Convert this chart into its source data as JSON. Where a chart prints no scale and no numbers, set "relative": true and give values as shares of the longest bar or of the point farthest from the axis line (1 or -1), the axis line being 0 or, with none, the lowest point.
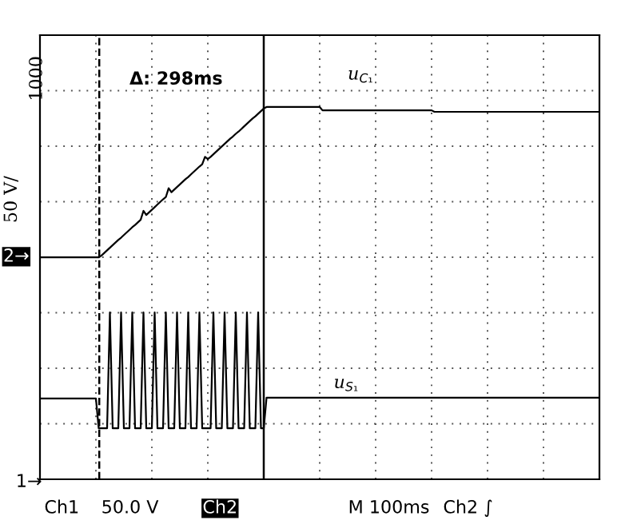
{
  "chart_data": {
    "type": "line",
    "relative": true,
    "ylabel": "50 V/",
    "categories": [
      null,
      null,
      null,
      null,
      null,
      null,
      null,
      null,
      null,
      null,
      null,
      null,
      null,
      null,
      null,
      null,
      null,
      null,
      null,
      null,
      null,
      null,
      null,
      null,
      null,
      null,
      null,
      null,
      null,
      null,
      null,
      null,
      null,
      null,
      null,
      null,
      null,
      null,
      null,
      null,
      null,
      null,
      null,
      null,
      null,
      null,
      null,
      null,
      null,
      null,
      null,
      null,
      null,
      null,
      null,
      null,
      null,
      null,
      null,
      null,
      null,
      null,
      null,
      null,
      null,
      null,
      null,
      null,
      null,
      null,
      null,
      null,
      null,
      null,
      null,
      null,
      null,
      null,
      null,
      null,
      null,
      null,
      null,
      null,
      null,
      null,
      null,
      null,
      null,
      null,
      null,
      null,
      null,
      null,
      null,
      null,
      null,
      null,
      null,
      null,
      null,
      null,
      null,
      null,
      null,
      null,
      null,
      null,
      null,
      null,
      null,
      null,
      null,
      null,
      null,
      null,
      null,
      null,
      null,
      null,
      null,
      null,
      null,
      null,
      null,
      null,
      null,
      null,
      null,
      null,
      null,
      null,
      null,
      null,
      null,
      null,
      null,
      null,
      null,
      null,
      null,
      null,
      null,
      null,
      null,
      null,
      null,
      null,
      null,
      null,
      null,
      null,
      null,
      null,
      null,
      null,
      null,
      null,
      null,
      null,
      null,
      null,
      null,
      null,
      null,
      null,
      null,
      null,
      null,
      null,
      null,
      null,
      null,
      null,
      null,
      null,
      null,
      null,
      null,
      null,
      null,
      null,
      null,
      null,
      null,
      null,
      null,
      null,
      null,
      null,
      null,
      null,
      null,
      null,
      null,
      null,
      null,
      null,
      null,
      null,
      null
    ],
    "grid": true,
    "legend": false,
    "marker": "none",
    "line_style": "solid",
    "annotations": [
      "Δ: 298ms",
      "1000",
      "Ch1",
      "50.0 V",
      "Ch2",
      "M 100ms",
      "Ch2 ∫",
      "2→",
      "1→"
    ],
    "series": [
      {
        "name": "u$_{C₁}$",
        "color": "#000000",
        "values": [
          0.596,
          0.596,
          0.596,
          0.596,
          0.596,
          0.596,
          0.596,
          0.596,
          0.596,
          0.596,
          0.596,
          0.596,
          0.596,
          0.596,
          0.596,
          0.596,
          0.596,
          0.596,
          0.596,
          0.596,
          0.596,
          0.596,
          0.601,
          0.608,
          0.615,
          0.622,
          0.629,
          0.636,
          0.643,
          0.649,
          0.656,
          0.663,
          0.67,
          0.677,
          0.683,
          0.69,
          0.697,
          0.721,
          0.71,
          0.717,
          0.724,
          0.731,
          0.738,
          0.745,
          0.752,
          0.758,
          0.782,
          0.771,
          0.778,
          0.785,
          0.792,
          0.799,
          0.806,
          0.812,
          0.819,
          0.826,
          0.833,
          0.84,
          0.846,
          0.866,
          0.86,
          0.866,
          0.873,
          0.88,
          0.887,
          0.894,
          0.901,
          0.908,
          0.915,
          0.921,
          0.928,
          0.934,
          0.941,
          0.948,
          0.955,
          0.962,
          0.969,
          0.975,
          0.982,
          0.989,
          0.996,
          1.0,
          1.0,
          1.0,
          1.0,
          1.0,
          1.0,
          1.0,
          1.0,
          1.0,
          1.0,
          1.0,
          1.0,
          1.0,
          1.0,
          1.0,
          1.0,
          1.0,
          1.0,
          1.0,
          1.0,
          0.991,
          0.991,
          0.991,
          0.991,
          0.991,
          0.991,
          0.991,
          0.991,
          0.991,
          0.991,
          0.991,
          0.991,
          0.991,
          0.991,
          0.991,
          0.991,
          0.991,
          0.991,
          0.991,
          0.991,
          0.991,
          0.991,
          0.991,
          0.991,
          0.991,
          0.991,
          0.991,
          0.991,
          0.991,
          0.991,
          0.991,
          0.991,
          0.991,
          0.991,
          0.991,
          0.991,
          0.991,
          0.991,
          0.991,
          0.991,
          0.987,
          0.987,
          0.987,
          0.987,
          0.987,
          0.987,
          0.987,
          0.987,
          0.987,
          0.987,
          0.987,
          0.987,
          0.987,
          0.987,
          0.987,
          0.987,
          0.987,
          0.987,
          0.987,
          0.987,
          0.987,
          0.987,
          0.987,
          0.987,
          0.987,
          0.987,
          0.987,
          0.987,
          0.987,
          0.987,
          0.987,
          0.987,
          0.987,
          0.987,
          0.987,
          0.987,
          0.987,
          0.987,
          0.987,
          0.987,
          0.987,
          0.987,
          0.987,
          0.987,
          0.987,
          0.987,
          0.987,
          0.987,
          0.987,
          0.987,
          0.987,
          0.987,
          0.987,
          0.987,
          0.987,
          0.987,
          0.987,
          0.987,
          0.987,
          0.987
        ]
      },
      {
        "name": "u$_{S₁}$",
        "color": "#000000",
        "values": [
          0.217,
          0.217,
          0.217,
          0.217,
          0.217,
          0.217,
          0.217,
          0.217,
          0.217,
          0.217,
          0.217,
          0.217,
          0.217,
          0.217,
          0.217,
          0.217,
          0.217,
          0.217,
          0.217,
          0.217,
          0.217,
          0.137,
          0.137,
          0.137,
          0.137,
          0.448,
          0.137,
          0.137,
          0.137,
          0.448,
          0.137,
          0.137,
          0.137,
          0.448,
          0.137,
          0.137,
          0.137,
          0.448,
          0.137,
          0.137,
          0.137,
          0.448,
          0.137,
          0.137,
          0.137,
          0.448,
          0.137,
          0.137,
          0.137,
          0.448,
          0.137,
          0.137,
          0.137,
          0.448,
          0.137,
          0.137,
          0.137,
          0.448,
          0.137,
          0.137,
          0.137,
          0.137,
          0.448,
          0.137,
          0.137,
          0.137,
          0.448,
          0.137,
          0.137,
          0.137,
          0.448,
          0.137,
          0.137,
          0.137,
          0.448,
          0.137,
          0.137,
          0.137,
          0.448,
          0.137,
          0.137,
          0.219,
          0.219,
          0.219,
          0.219,
          0.219,
          0.219,
          0.219,
          0.219,
          0.219,
          0.219,
          0.219,
          0.219,
          0.219,
          0.219,
          0.219,
          0.219,
          0.219,
          0.219,
          0.219,
          0.219,
          0.219,
          0.219,
          0.219,
          0.219,
          0.219,
          0.219,
          0.219,
          0.219,
          0.219,
          0.219,
          0.219,
          0.219,
          0.219,
          0.219,
          0.219,
          0.219,
          0.219,
          0.219,
          0.219,
          0.219,
          0.219,
          0.219,
          0.219,
          0.219,
          0.219,
          0.219,
          0.219,
          0.219,
          0.219,
          0.219,
          0.219,
          0.219,
          0.219,
          0.219,
          0.219,
          0.219,
          0.219,
          0.219,
          0.219,
          0.219,
          0.219,
          0.219,
          0.219,
          0.219,
          0.219,
          0.219,
          0.219,
          0.219,
          0.219,
          0.219,
          0.219,
          0.219,
          0.219,
          0.219,
          0.219,
          0.219,
          0.219,
          0.219,
          0.219,
          0.219,
          0.219,
          0.219,
          0.219,
          0.219,
          0.219,
          0.219,
          0.219,
          0.219,
          0.219,
          0.219,
          0.219,
          0.219,
          0.219,
          0.219,
          0.219,
          0.219,
          0.219,
          0.219,
          0.219,
          0.219,
          0.219,
          0.219,
          0.219,
          0.219,
          0.219,
          0.219,
          0.219,
          0.219,
          0.219,
          0.219,
          0.219,
          0.219,
          0.219,
          0.219,
          0.219,
          0.219,
          0.219,
          0.219,
          0.219,
          0.219
        ]
      }
    ]
  }
}
